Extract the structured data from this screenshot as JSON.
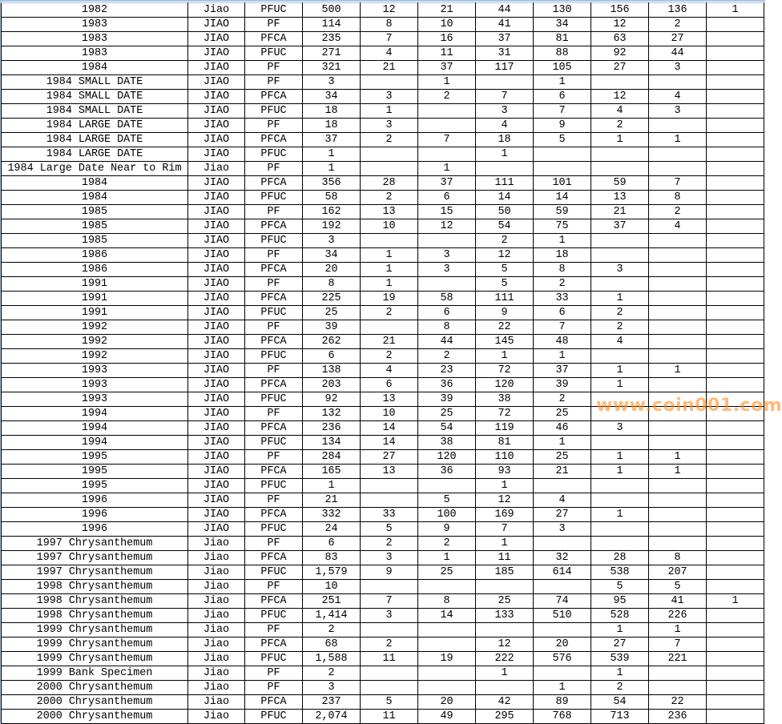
{
  "colors": {
    "grid": "#000000",
    "frame": "#a9c4e6",
    "watermark": "#ff8c1e"
  },
  "watermark": "www.coin001.com",
  "rows": [
    [
      "1982",
      "Jiao",
      "PFUC",
      "500",
      "12",
      "21",
      "44",
      "130",
      "156",
      "136",
      "1"
    ],
    [
      "1983",
      "JIAO",
      "PF",
      "114",
      "8",
      "10",
      "41",
      "34",
      "12",
      "2",
      ""
    ],
    [
      "1983",
      "JIAO",
      "PFCA",
      "235",
      "7",
      "16",
      "37",
      "81",
      "63",
      "27",
      ""
    ],
    [
      "1983",
      "JIAO",
      "PFUC",
      "271",
      "4",
      "11",
      "31",
      "88",
      "92",
      "44",
      ""
    ],
    [
      "1984",
      "JIAO",
      "PF",
      "321",
      "21",
      "37",
      "117",
      "105",
      "27",
      "3",
      ""
    ],
    [
      "1984 SMALL DATE",
      "JIAO",
      "PF",
      "3",
      "",
      "1",
      "",
      "1",
      "",
      "",
      ""
    ],
    [
      "1984 SMALL DATE",
      "JIAO",
      "PFCA",
      "34",
      "3",
      "2",
      "7",
      "6",
      "12",
      "4",
      ""
    ],
    [
      "1984 SMALL DATE",
      "JIAO",
      "PFUC",
      "18",
      "1",
      "",
      "3",
      "7",
      "4",
      "3",
      ""
    ],
    [
      "1984 LARGE DATE",
      "JIAO",
      "PF",
      "18",
      "3",
      "",
      "4",
      "9",
      "2",
      "",
      ""
    ],
    [
      "1984 LARGE DATE",
      "JIAO",
      "PFCA",
      "37",
      "2",
      "7",
      "18",
      "5",
      "1",
      "1",
      ""
    ],
    [
      "1984 LARGE DATE",
      "JIAO",
      "PFUC",
      "1",
      "",
      "",
      "1",
      "",
      "",
      "",
      ""
    ],
    [
      "1984 Large Date Near to Rim",
      "Jiao",
      "PF",
      "1",
      "",
      "1",
      "",
      "",
      "",
      "",
      ""
    ],
    [
      "1984",
      "JIAO",
      "PFCA",
      "356",
      "28",
      "37",
      "111",
      "101",
      "59",
      "7",
      ""
    ],
    [
      "1984",
      "JIAO",
      "PFUC",
      "58",
      "2",
      "6",
      "14",
      "14",
      "13",
      "8",
      ""
    ],
    [
      "1985",
      "JIAO",
      "PF",
      "162",
      "13",
      "15",
      "50",
      "59",
      "21",
      "2",
      ""
    ],
    [
      "1985",
      "JIAO",
      "PFCA",
      "192",
      "10",
      "12",
      "54",
      "75",
      "37",
      "4",
      ""
    ],
    [
      "1985",
      "JIAO",
      "PFUC",
      "3",
      "",
      "",
      "2",
      "1",
      "",
      "",
      ""
    ],
    [
      "1986",
      "JIAO",
      "PF",
      "34",
      "1",
      "3",
      "12",
      "18",
      "",
      "",
      ""
    ],
    [
      "1986",
      "JIAO",
      "PFCA",
      "20",
      "1",
      "3",
      "5",
      "8",
      "3",
      "",
      ""
    ],
    [
      "1991",
      "JIAO",
      "PF",
      "8",
      "1",
      "",
      "5",
      "2",
      "",
      "",
      ""
    ],
    [
      "1991",
      "JIAO",
      "PFCA",
      "225",
      "19",
      "58",
      "111",
      "33",
      "1",
      "",
      ""
    ],
    [
      "1991",
      "JIAO",
      "PFUC",
      "25",
      "2",
      "6",
      "9",
      "6",
      "2",
      "",
      ""
    ],
    [
      "1992",
      "JIAO",
      "PF",
      "39",
      "",
      "8",
      "22",
      "7",
      "2",
      "",
      ""
    ],
    [
      "1992",
      "JIAO",
      "PFCA",
      "262",
      "21",
      "44",
      "145",
      "48",
      "4",
      "",
      ""
    ],
    [
      "1992",
      "JIAO",
      "PFUC",
      "6",
      "2",
      "2",
      "1",
      "1",
      "",
      "",
      ""
    ],
    [
      "1993",
      "JIAO",
      "PF",
      "138",
      "4",
      "23",
      "72",
      "37",
      "1",
      "1",
      ""
    ],
    [
      "1993",
      "JIAO",
      "PFCA",
      "203",
      "6",
      "36",
      "120",
      "39",
      "1",
      "",
      ""
    ],
    [
      "1993",
      "JIAO",
      "PFUC",
      "92",
      "13",
      "39",
      "38",
      "2",
      "",
      "",
      ""
    ],
    [
      "1994",
      "JIAO",
      "PF",
      "132",
      "10",
      "25",
      "72",
      "25",
      "",
      "",
      ""
    ],
    [
      "1994",
      "JIAO",
      "PFCA",
      "236",
      "14",
      "54",
      "119",
      "46",
      "3",
      "",
      ""
    ],
    [
      "1994",
      "JIAO",
      "PFUC",
      "134",
      "14",
      "38",
      "81",
      "1",
      "",
      "",
      ""
    ],
    [
      "1995",
      "JIAO",
      "PF",
      "284",
      "27",
      "120",
      "110",
      "25",
      "1",
      "1",
      ""
    ],
    [
      "1995",
      "JIAO",
      "PFCA",
      "165",
      "13",
      "36",
      "93",
      "21",
      "1",
      "1",
      ""
    ],
    [
      "1995",
      "JIAO",
      "PFUC",
      "1",
      "",
      "",
      "1",
      "",
      "",
      "",
      ""
    ],
    [
      "1996",
      "JIAO",
      "PF",
      "21",
      "",
      "5",
      "12",
      "4",
      "",
      "",
      ""
    ],
    [
      "1996",
      "JIAO",
      "PFCA",
      "332",
      "33",
      "100",
      "169",
      "27",
      "1",
      "",
      ""
    ],
    [
      "1996",
      "JIAO",
      "PFUC",
      "24",
      "5",
      "9",
      "7",
      "3",
      "",
      "",
      ""
    ],
    [
      "1997 Chrysanthemum",
      "Jiao",
      "PF",
      "6",
      "2",
      "2",
      "1",
      "",
      "",
      "",
      ""
    ],
    [
      "1997 Chrysanthemum",
      "Jiao",
      "PFCA",
      "83",
      "3",
      "1",
      "11",
      "32",
      "28",
      "8",
      ""
    ],
    [
      "1997 Chrysanthemum",
      "Jiao",
      "PFUC",
      "1,579",
      "9",
      "25",
      "185",
      "614",
      "538",
      "207",
      ""
    ],
    [
      "1998 Chrysanthemum",
      "Jiao",
      "PF",
      "10",
      "",
      "",
      "",
      "",
      "5",
      "5",
      ""
    ],
    [
      "1998 Chrysanthemum",
      "Jiao",
      "PFCA",
      "251",
      "7",
      "8",
      "25",
      "74",
      "95",
      "41",
      "1"
    ],
    [
      "1998 Chrysanthemum",
      "Jiao",
      "PFUC",
      "1,414",
      "3",
      "14",
      "133",
      "510",
      "528",
      "226",
      ""
    ],
    [
      "1999 Chrysanthemum",
      "Jiao",
      "PF",
      "2",
      "",
      "",
      "",
      "",
      "1",
      "1",
      ""
    ],
    [
      "1999 Chrysanthemum",
      "Jiao",
      "PFCA",
      "68",
      "2",
      "",
      "12",
      "20",
      "27",
      "7",
      ""
    ],
    [
      "1999 Chrysanthemum",
      "Jiao",
      "PFUC",
      "1,588",
      "11",
      "19",
      "222",
      "576",
      "539",
      "221",
      ""
    ],
    [
      "1999 Bank Specimen",
      "Jiao",
      "PF",
      "2",
      "",
      "",
      "1",
      "",
      "1",
      "",
      ""
    ],
    [
      "2000 Chrysanthemum",
      "Jiao",
      "PF",
      "3",
      "",
      "",
      "",
      "1",
      "2",
      "",
      ""
    ],
    [
      "2000 Chrysanthemum",
      "Jiao",
      "PFCA",
      "237",
      "5",
      "20",
      "42",
      "89",
      "54",
      "22",
      ""
    ],
    [
      "2000 Chrysanthemum",
      "Jiao",
      "PFUC",
      "2,074",
      "11",
      "49",
      "295",
      "768",
      "713",
      "236",
      ""
    ]
  ]
}
